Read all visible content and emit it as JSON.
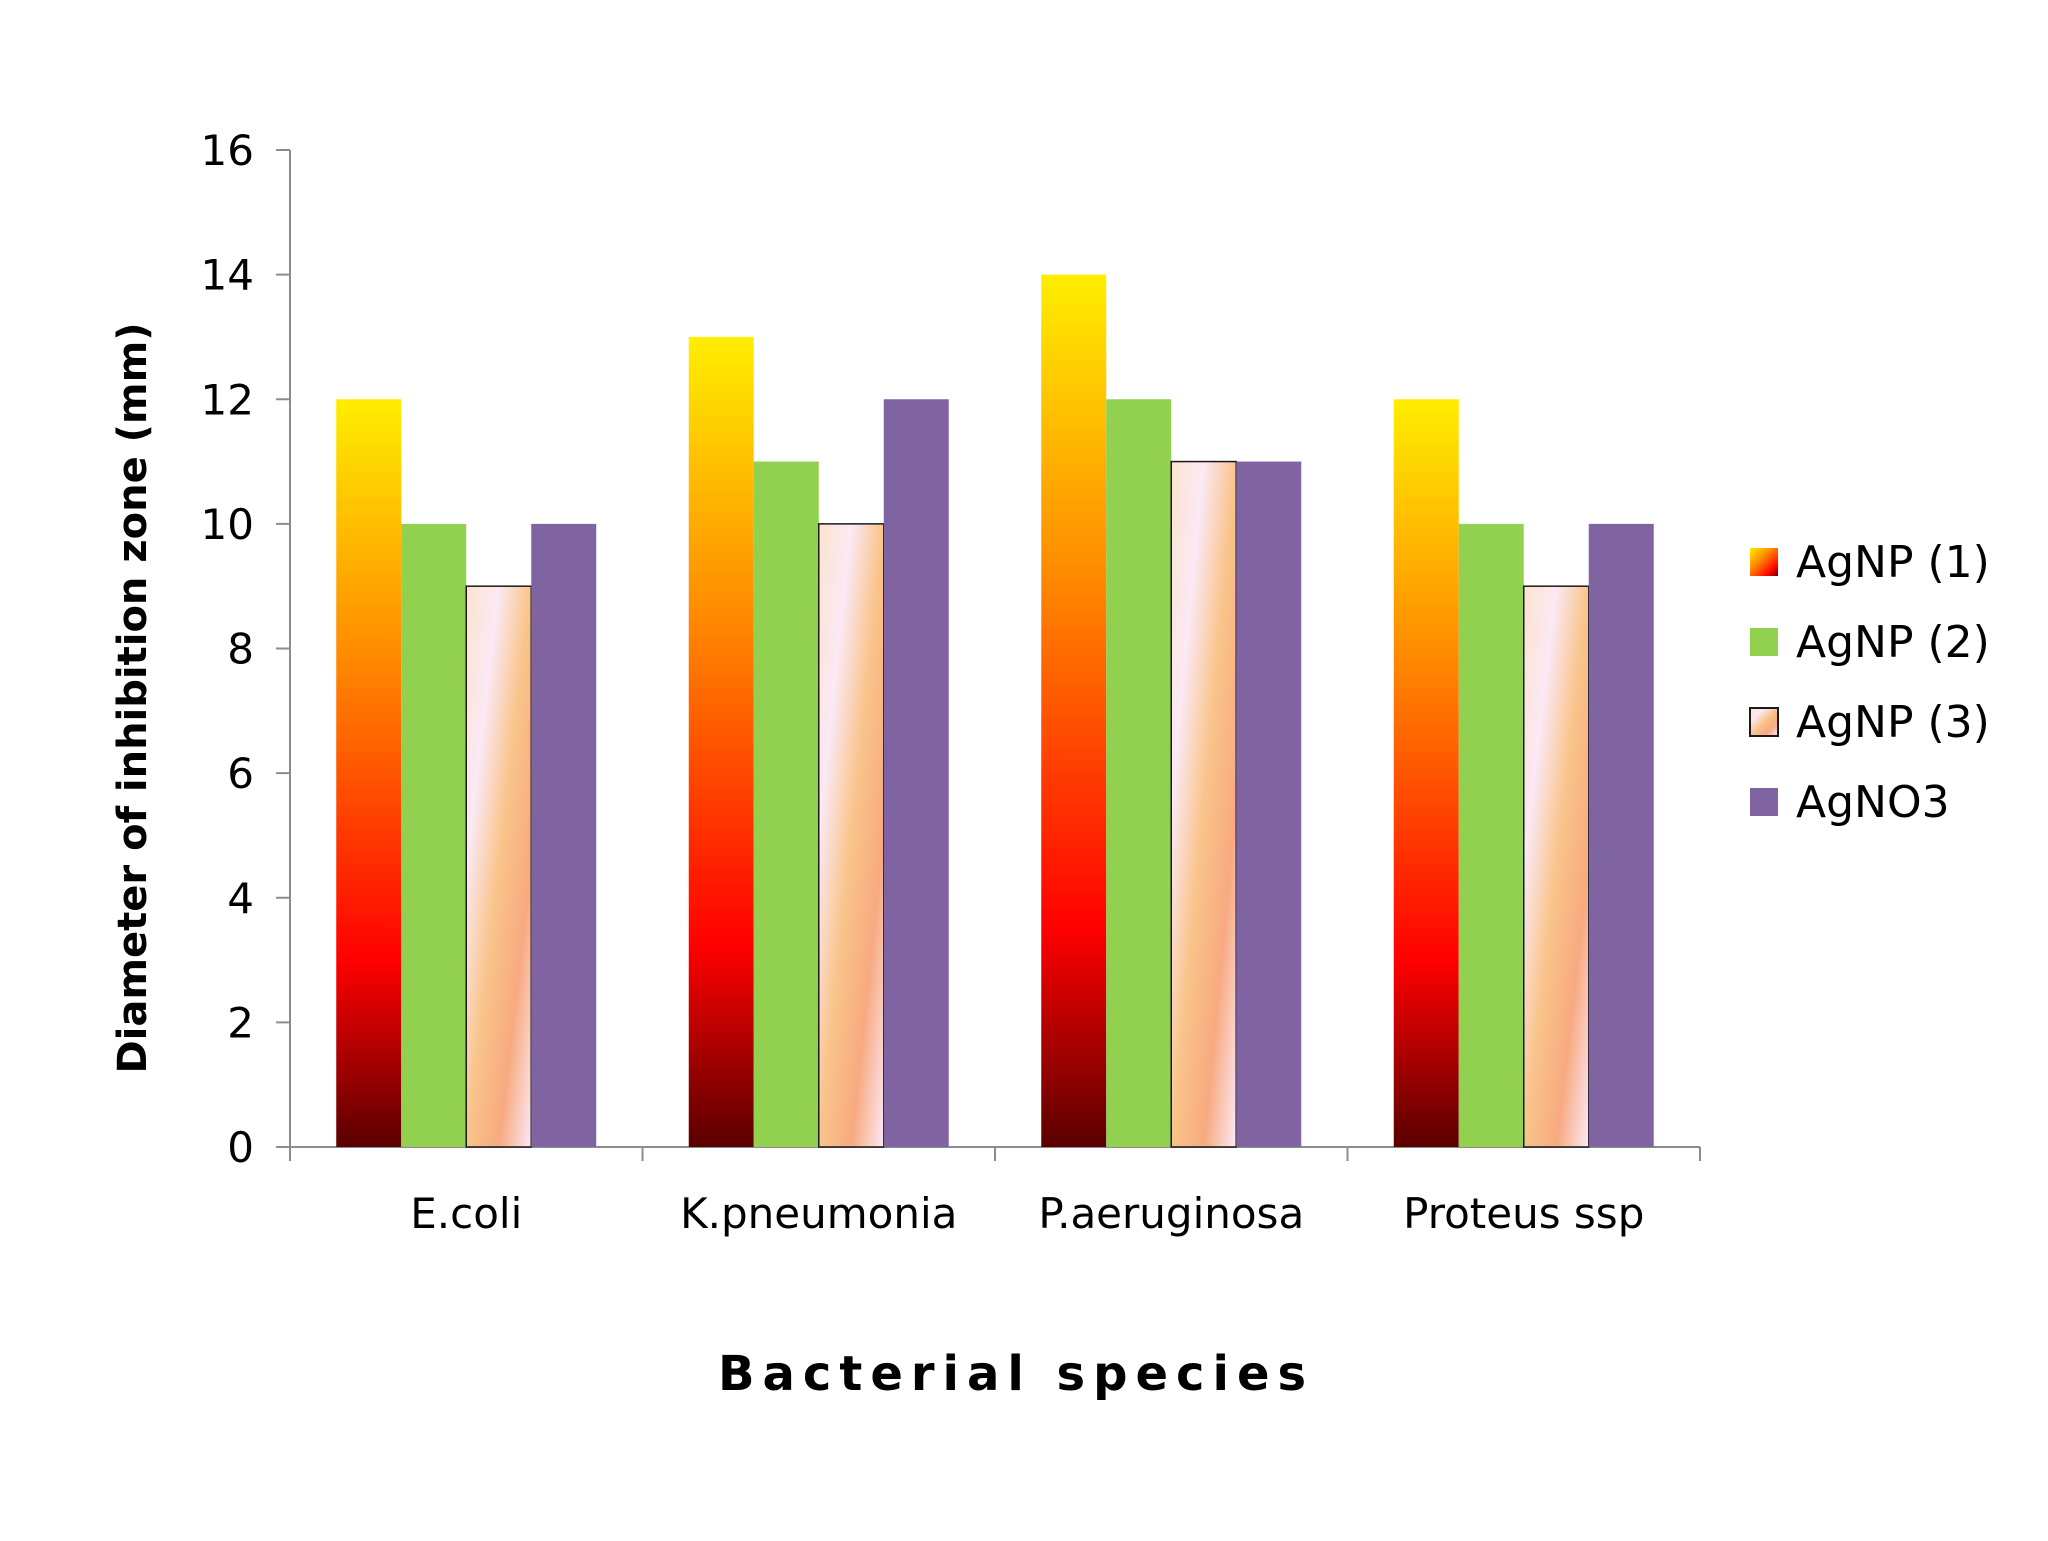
{
  "chart_data": {
    "type": "bar",
    "title": "",
    "xlabel": "Bacterial species",
    "ylabel": "Diameter of inhibition zone (mm)",
    "ylim": [
      0,
      16
    ],
    "yticks": [
      0,
      2,
      4,
      6,
      8,
      10,
      12,
      14,
      16
    ],
    "grid": false,
    "legend_position": "right",
    "categories": [
      "E.coli",
      "K.pneumonia",
      "P.aeruginosa",
      "Proteus ssp"
    ],
    "series": [
      {
        "name": "AgNP (1)",
        "values": [
          12,
          13,
          14,
          12
        ],
        "fill": "gradient-fire",
        "colors": [
          "#ffee00",
          "#ff8800",
          "#ff0000",
          "#5a0000"
        ]
      },
      {
        "name": "AgNP (2)",
        "values": [
          10,
          11,
          12,
          10
        ],
        "fill": "solid",
        "colors": [
          "#92d050"
        ]
      },
      {
        "name": "AgNP (3)",
        "values": [
          9,
          10,
          11,
          9
        ],
        "fill": "gradient-peach",
        "colors": [
          "#fde3cc",
          "#f9c48a",
          "#f8aa80",
          "#fbe9f5"
        ]
      },
      {
        "name": "AgNO3",
        "values": [
          10,
          12,
          11,
          10
        ],
        "fill": "solid",
        "colors": [
          "#8064a2"
        ]
      }
    ]
  }
}
